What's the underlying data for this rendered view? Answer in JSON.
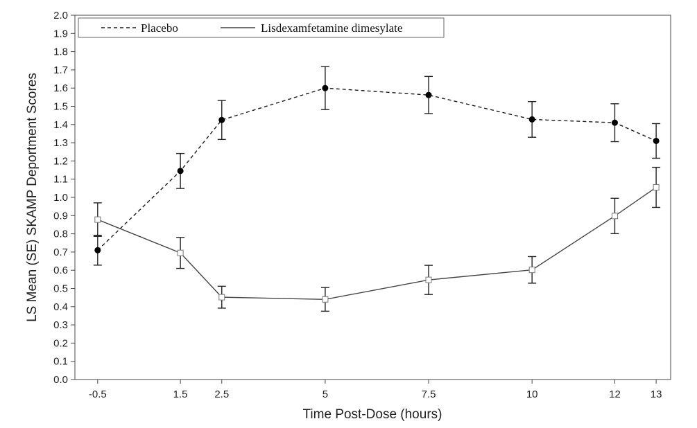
{
  "chart_data": {
    "type": "line",
    "title": "",
    "xlabel": "Time Post-Dose (hours)",
    "ylabel": "LS Mean (SE) SKAMP Deportment Scores",
    "xlim": [
      -1.05,
      13.35
    ],
    "ylim": [
      0,
      2.0
    ],
    "x_ticks": [
      -0.5,
      1.5,
      2.5,
      5,
      7.5,
      10,
      12,
      13
    ],
    "x_tick_labels": [
      "-0.5",
      "1.5",
      "2.5",
      "5",
      "7.5",
      "10",
      "12",
      "13"
    ],
    "y_ticks": [
      0.0,
      0.1,
      0.2,
      0.3,
      0.4,
      0.5,
      0.6,
      0.7,
      0.8,
      0.9,
      1.0,
      1.1,
      1.2,
      1.3,
      1.4,
      1.5,
      1.6,
      1.7,
      1.8,
      1.9,
      2.0
    ],
    "y_tick_labels": [
      "0.0",
      "0.1",
      "0.2",
      "0.3",
      "0.4",
      "0.5",
      "0.6",
      "0.7",
      "0.8",
      "0.9",
      "1.0",
      "1.1",
      "1.2",
      "1.3",
      "1.4",
      "1.5",
      "1.6",
      "1.7",
      "1.8",
      "1.9",
      "2.0"
    ],
    "grid": false,
    "legend_position": "top-left",
    "series": [
      {
        "name": "Placebo",
        "line_style": "dashed",
        "marker": "filled-circle",
        "color": "#1a1a1a",
        "x": [
          -0.5,
          1.5,
          2.5,
          5,
          7.5,
          10,
          12,
          13
        ],
        "values": [
          0.71,
          1.145,
          1.425,
          1.6,
          1.562,
          1.428,
          1.41,
          1.31
        ],
        "se": [
          0.082,
          0.096,
          0.107,
          0.118,
          0.102,
          0.098,
          0.104,
          0.095
        ]
      },
      {
        "name": "Lisdexamfetamine dimesylate",
        "line_style": "solid",
        "marker": "open-square",
        "color": "#444444",
        "x": [
          -0.5,
          1.5,
          2.5,
          5,
          7.5,
          10,
          12,
          13
        ],
        "values": [
          0.878,
          0.695,
          0.452,
          0.44,
          0.547,
          0.602,
          0.898,
          1.055
        ],
        "se": [
          0.092,
          0.085,
          0.06,
          0.065,
          0.08,
          0.073,
          0.097,
          0.11
        ]
      }
    ]
  }
}
